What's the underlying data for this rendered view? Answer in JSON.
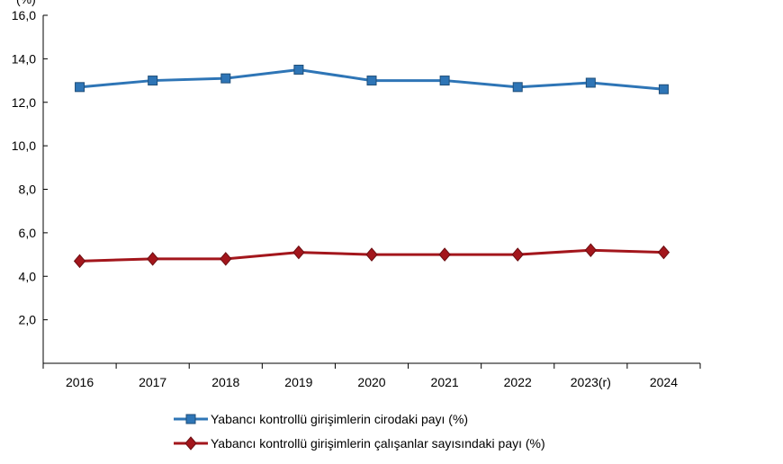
{
  "chart_data": {
    "type": "line",
    "ylabel": "(%)",
    "categories": [
      "2016",
      "2017",
      "2018",
      "2019",
      "2020",
      "2021",
      "2022",
      "2023(r)",
      "2024"
    ],
    "ylim": [
      0,
      16
    ],
    "yticks": [
      "2,0",
      "4,0",
      "6,0",
      "8,0",
      "10,0",
      "12,0",
      "14,0",
      "16,0"
    ],
    "grid": false,
    "legend_placement": "bottom",
    "series": [
      {
        "name": "Yabancı kontrollü girişimlerin cirodaki payı (%)",
        "color": "#2E75B6",
        "marker": "square",
        "values": [
          12.7,
          13.0,
          13.1,
          13.5,
          13.0,
          13.0,
          12.7,
          12.9,
          12.6
        ]
      },
      {
        "name": "Yabancı kontrollü girişimlerin çalışanlar sayısındaki payı (%)",
        "color": "#A3161C",
        "marker": "diamond",
        "values": [
          4.7,
          4.8,
          4.8,
          5.1,
          5.0,
          5.0,
          5.0,
          5.2,
          5.1
        ]
      }
    ]
  }
}
